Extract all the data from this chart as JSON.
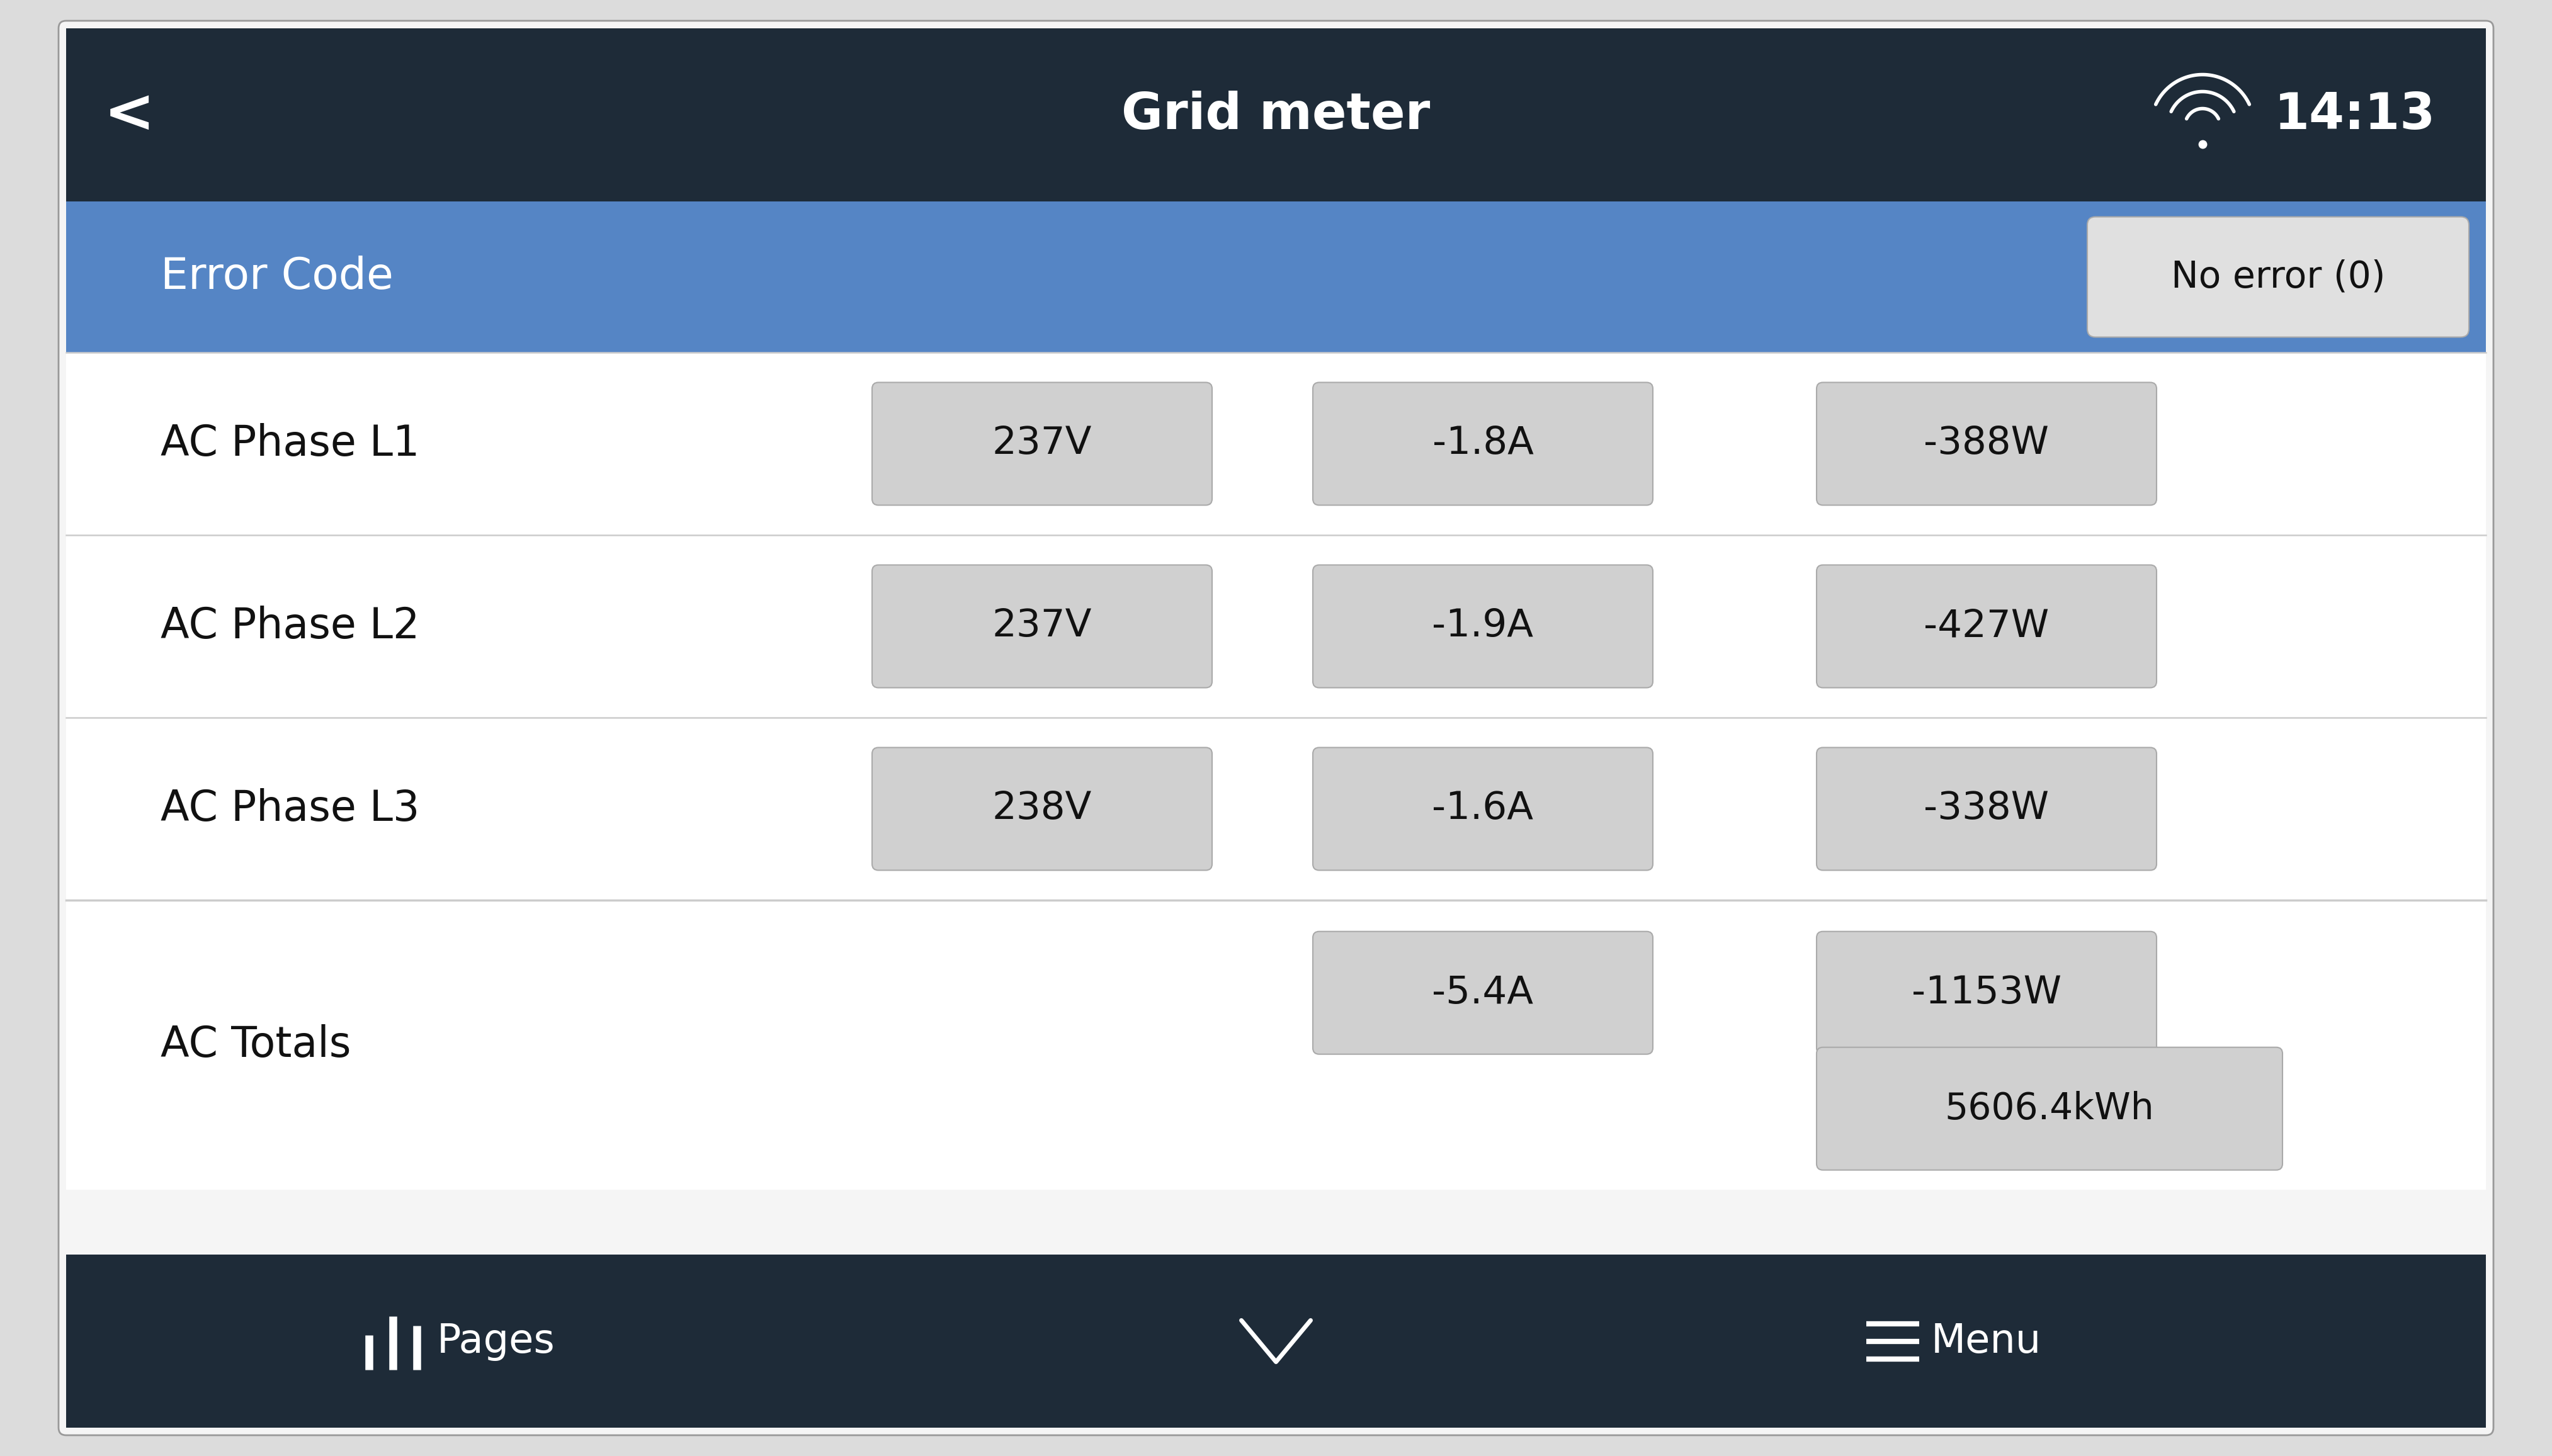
{
  "title": "Grid meter",
  "time": "14:13",
  "outer_bg": "#dcdcdc",
  "header_bg": "#1e2b38",
  "header_text_color": "#ffffff",
  "blue_row_bg": "#5585c5",
  "blue_row_text": "#ffffff",
  "white_row_bg": "#ffffff",
  "row_text_color": "#111111",
  "pill_bg": "#d0d0d0",
  "pill_text_color": "#111111",
  "no_error_pill_bg": "#e0e0e0",
  "footer_bg": "#1e2b38",
  "footer_text_color": "#ffffff",
  "separator_color": "#cccccc",
  "rows": [
    {
      "label": "AC Phase L1",
      "voltage": "237V",
      "current": "-1.8A",
      "power": "-388W"
    },
    {
      "label": "AC Phase L2",
      "voltage": "237V",
      "current": "-1.9A",
      "power": "-427W"
    },
    {
      "label": "AC Phase L3",
      "voltage": "238V",
      "current": "-1.6A",
      "power": "-338W"
    }
  ],
  "totals_label": "AC Totals",
  "totals_current": "-5.4A",
  "totals_power": "-1153W",
  "totals_energy": "5606.4kWh",
  "error_label": "Error Code",
  "error_value": "No error (0)",
  "footer_pages": "Pages",
  "footer_menu": "Menu",
  "panel_bg": "#f5f5f5"
}
